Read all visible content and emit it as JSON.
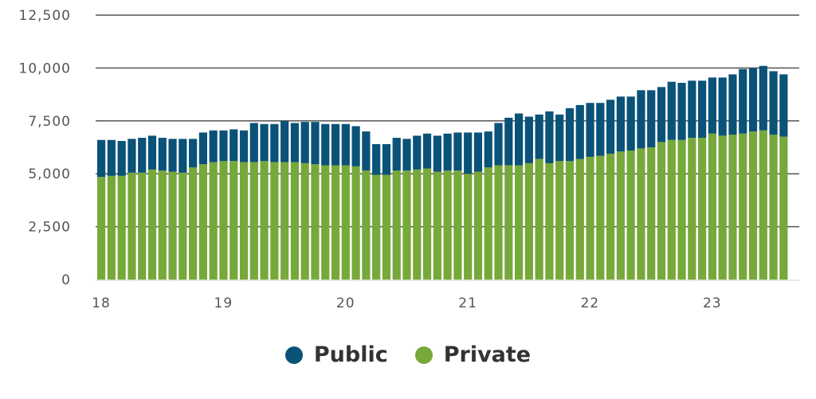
{
  "chart_data": {
    "type": "bar",
    "stacked": true,
    "ylim": [
      0,
      12500
    ],
    "yticks": [
      "0",
      "2,500",
      "5,000",
      "7,500",
      "10,000",
      "12,500"
    ],
    "ytick_values": [
      0,
      2500,
      5000,
      7500,
      10000,
      12500
    ],
    "xtick_labels": [
      "18",
      "19",
      "20",
      "21",
      "22",
      "23"
    ],
    "grid": "horizontal",
    "legend_position": "bottom-center",
    "colors": {
      "Public": "#0a5277",
      "Private": "#77a83a"
    },
    "series": [
      {
        "name": "Private",
        "values": [
          4850,
          4900,
          4900,
          5050,
          5050,
          5200,
          5150,
          5100,
          5050,
          5300,
          5450,
          5550,
          5600,
          5600,
          5550,
          5550,
          5600,
          5550,
          5550,
          5550,
          5500,
          5450,
          5400,
          5400,
          5400,
          5350,
          5150,
          4950,
          4950,
          5150,
          5150,
          5200,
          5250,
          5100,
          5150,
          5150,
          5000,
          5100,
          5300,
          5400,
          5400,
          5400,
          5500,
          5700,
          5500,
          5600,
          5600,
          5700,
          5800,
          5850,
          5950,
          6050,
          6100,
          6200,
          6250,
          6500,
          6600,
          6600,
          6700,
          6700,
          6900,
          6800,
          6850,
          6900,
          7000,
          7050,
          6850,
          6750
        ]
      },
      {
        "name": "Public",
        "values": [
          1750,
          1700,
          1650,
          1600,
          1650,
          1600,
          1550,
          1550,
          1600,
          1350,
          1500,
          1500,
          1450,
          1500,
          1500,
          1850,
          1750,
          1800,
          1950,
          1850,
          1950,
          2000,
          1950,
          1950,
          1950,
          1900,
          1850,
          1450,
          1450,
          1550,
          1500,
          1600,
          1650,
          1700,
          1750,
          1800,
          1950,
          1850,
          1700,
          2000,
          2250,
          2450,
          2200,
          2100,
          2450,
          2200,
          2500,
          2550,
          2550,
          2500,
          2550,
          2600,
          2550,
          2750,
          2700,
          2600,
          2750,
          2700,
          2700,
          2700,
          2650,
          2750,
          2850,
          3050,
          3000,
          3050,
          3000,
          2950
        ]
      }
    ]
  },
  "legend": {
    "items": [
      {
        "label": "Public",
        "color": "#0a5277"
      },
      {
        "label": "Private",
        "color": "#77a83a"
      }
    ]
  }
}
